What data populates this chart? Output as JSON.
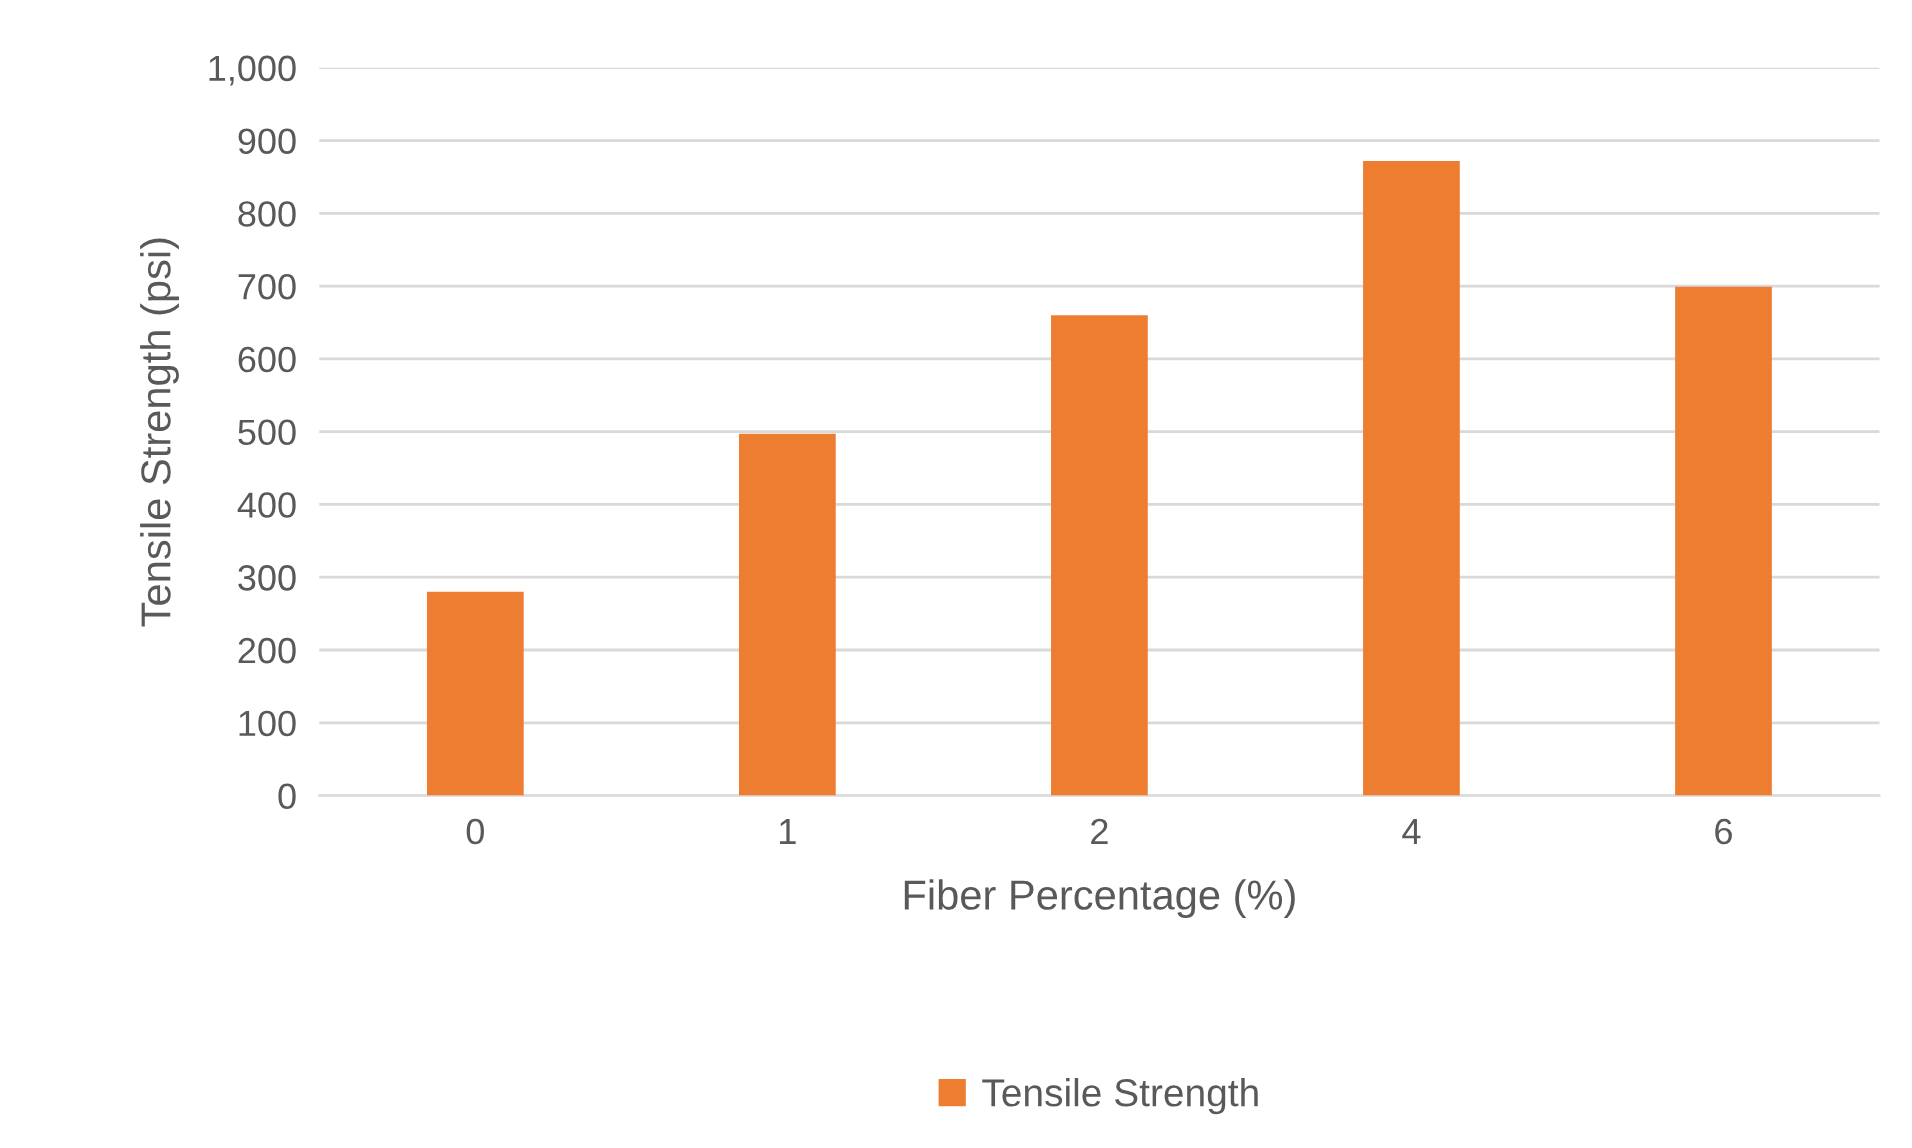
{
  "chart_data": {
    "type": "bar",
    "xlabel": "Fiber Percentage (%)",
    "ylabel": "Tensile Strength (psi)",
    "categories": [
      "0",
      "1",
      "2",
      "4",
      "6"
    ],
    "series": [
      {
        "name": "Tensile Strength",
        "color": "#ed7d31",
        "values": [
          280,
          497,
          660,
          872,
          699
        ]
      }
    ],
    "ylim": [
      0,
      1000
    ],
    "yticks": [
      0,
      100,
      200,
      300,
      400,
      500,
      600,
      700,
      800,
      900,
      {
        "value": 1000,
        "label": "1,000"
      }
    ],
    "grid": "y",
    "legend": "bottom"
  }
}
